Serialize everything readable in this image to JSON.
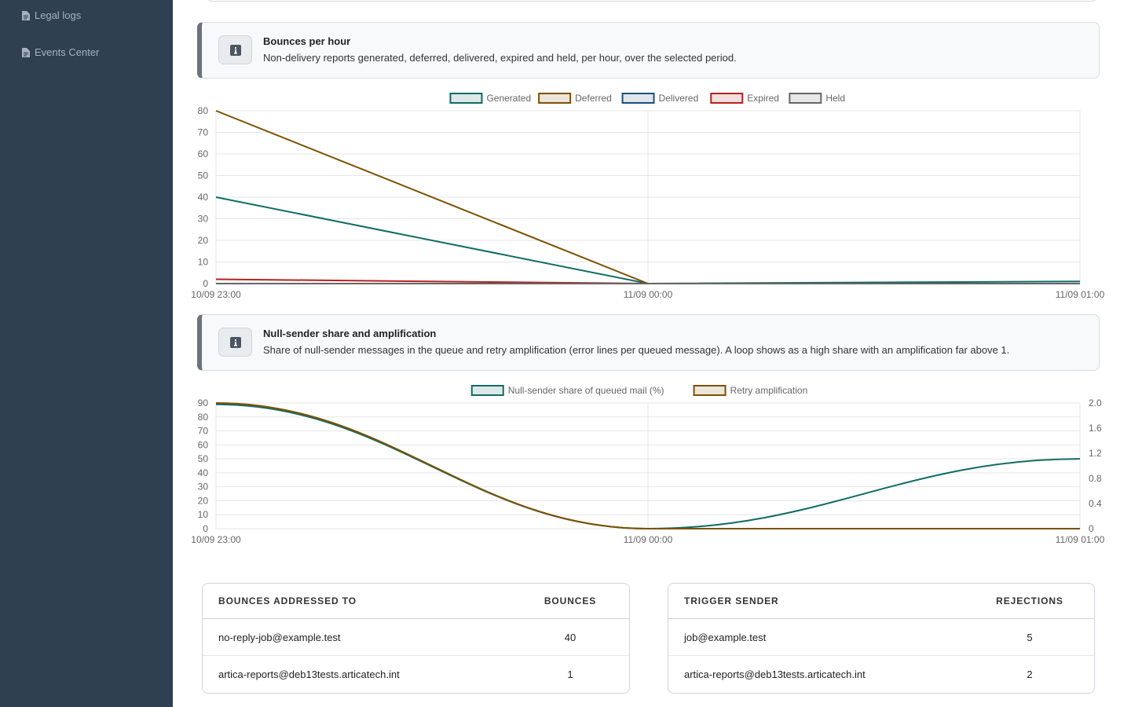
{
  "sidebar": {
    "items": [
      {
        "label": "Legal logs",
        "icon": "file-icon"
      },
      {
        "label": "Events Center",
        "icon": "file-icon"
      }
    ]
  },
  "info_boxes": [
    {
      "title": "Bounces per hour",
      "description": "Non-delivery reports generated, deferred, delivered, expired and held, per hour, over the selected period.",
      "icon": "info-icon"
    },
    {
      "title": "Null-sender share and amplification",
      "description": "Share of null-sender messages in the queue and retry amplification (error lines per queued message). A loop shows as a high share with an amplification far above 1.",
      "icon": "info-icon"
    }
  ],
  "chart_data": [
    {
      "type": "line",
      "x": [
        "10/09 23:00",
        "11/09 00:00",
        "11/09 01:00"
      ],
      "ylim": [
        0,
        80
      ],
      "yticks": [
        0,
        10,
        20,
        30,
        40,
        50,
        60,
        70,
        80
      ],
      "legend_position": "top",
      "grid": true,
      "series": [
        {
          "name": "Generated",
          "color": "#116b66",
          "values": [
            40,
            0,
            1
          ]
        },
        {
          "name": "Deferred",
          "color": "#7d5100",
          "values": [
            80,
            0,
            0
          ]
        },
        {
          "name": "Delivered",
          "color": "#1f4e79",
          "values": [
            0,
            0,
            0
          ]
        },
        {
          "name": "Expired",
          "color": "#b42323",
          "values": [
            2,
            0,
            0
          ]
        },
        {
          "name": "Held",
          "color": "#666666",
          "values": [
            0,
            0,
            0
          ]
        }
      ]
    },
    {
      "type": "line",
      "x": [
        "10/09 23:00",
        "11/09 00:00",
        "11/09 01:00"
      ],
      "ylim": [
        0,
        90
      ],
      "yticks": [
        0,
        10,
        20,
        30,
        40,
        50,
        60,
        70,
        80,
        90
      ],
      "y2lim": [
        0,
        2.0
      ],
      "y2ticks": [
        "0",
        "0.4",
        "0.8",
        "1.2",
        "1.6",
        "2.0"
      ],
      "legend_position": "top",
      "grid": true,
      "series": [
        {
          "name": "Null-sender share of queued mail (%)",
          "color": "#116b66",
          "axis": "left",
          "values": [
            89,
            0,
            50
          ]
        },
        {
          "name": "Retry amplification",
          "color": "#7d5100",
          "axis": "right",
          "values": [
            2.0,
            0,
            0
          ]
        }
      ]
    }
  ],
  "tables": [
    {
      "headers": [
        "BOUNCES ADDRESSED TO",
        "BOUNCES"
      ],
      "rows": [
        [
          "no-reply-job@example.test",
          "40"
        ],
        [
          "artica-reports@deb13tests.articatech.int",
          "1"
        ]
      ]
    },
    {
      "headers": [
        "TRIGGER SENDER",
        "REJECTIONS"
      ],
      "rows": [
        [
          "job@example.test",
          "5"
        ],
        [
          "artica-reports@deb13tests.articatech.int",
          "2"
        ]
      ]
    }
  ]
}
